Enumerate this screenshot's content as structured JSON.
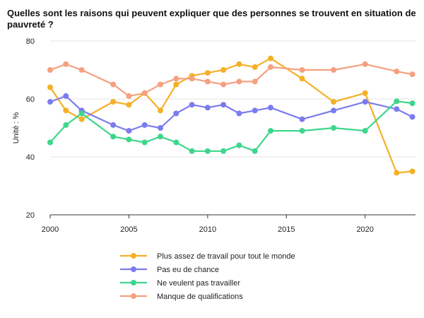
{
  "chart_data": {
    "type": "line",
    "title": "Quelles sont les raisons qui peuvent expliquer que des personnes se trouvent en situation de pauvreté ?",
    "xlabel": "",
    "ylabel": "Unité : %",
    "xlim": [
      2000,
      2023.2
    ],
    "ylim": [
      20,
      80
    ],
    "x_ticks": [
      2000,
      2005,
      2010,
      2015,
      2020
    ],
    "y_ticks": [
      20,
      40,
      60,
      80
    ],
    "grid": "horizontal",
    "legend_position": "bottom",
    "series": [
      {
        "name": "Plus assez de travail pour tout le monde",
        "color": "#F5B027",
        "points": [
          [
            2000,
            64
          ],
          [
            2001,
            56
          ],
          [
            2002,
            53
          ],
          [
            2004,
            59
          ],
          [
            2005,
            58
          ],
          [
            2006,
            62
          ],
          [
            2007,
            56
          ],
          [
            2008,
            65
          ],
          [
            2009,
            68
          ],
          [
            2010,
            69
          ],
          [
            2011,
            70
          ],
          [
            2012,
            72
          ],
          [
            2013,
            71
          ],
          [
            2014,
            74
          ],
          [
            2016,
            67
          ],
          [
            2018,
            59
          ],
          [
            2020,
            62
          ],
          [
            2022,
            34.5
          ],
          [
            2023,
            35
          ]
        ]
      },
      {
        "name": "Pas eu de chance",
        "color": "#7B7BEF",
        "points": [
          [
            2000,
            59
          ],
          [
            2001,
            61
          ],
          [
            2002,
            56
          ],
          [
            2004,
            51
          ],
          [
            2005,
            49
          ],
          [
            2006,
            51
          ],
          [
            2007,
            50
          ],
          [
            2008,
            55
          ],
          [
            2009,
            58
          ],
          [
            2010,
            57
          ],
          [
            2011,
            58
          ],
          [
            2012,
            55
          ],
          [
            2013,
            56
          ],
          [
            2014,
            57
          ],
          [
            2016,
            53
          ],
          [
            2018,
            56
          ],
          [
            2020,
            59
          ],
          [
            2022,
            56.5
          ],
          [
            2023,
            53.8
          ]
        ]
      },
      {
        "name": "Ne veulent pas travailler",
        "color": "#3DD68C",
        "points": [
          [
            2000,
            45
          ],
          [
            2001,
            51
          ],
          [
            2002,
            55
          ],
          [
            2004,
            47
          ],
          [
            2005,
            46
          ],
          [
            2006,
            45
          ],
          [
            2007,
            47
          ],
          [
            2008,
            45
          ],
          [
            2009,
            42
          ],
          [
            2010,
            42
          ],
          [
            2011,
            42
          ],
          [
            2012,
            44
          ],
          [
            2013,
            42
          ],
          [
            2014,
            49
          ],
          [
            2016,
            49
          ],
          [
            2018,
            50
          ],
          [
            2020,
            49
          ],
          [
            2022,
            59.2
          ],
          [
            2023,
            58.5
          ]
        ]
      },
      {
        "name": "Manque de qualifications",
        "color": "#F5A07F",
        "points": [
          [
            2000,
            70
          ],
          [
            2001,
            72
          ],
          [
            2002,
            70
          ],
          [
            2004,
            65
          ],
          [
            2005,
            61
          ],
          [
            2006,
            62
          ],
          [
            2007,
            65
          ],
          [
            2008,
            67
          ],
          [
            2009,
            67
          ],
          [
            2010,
            66
          ],
          [
            2011,
            65
          ],
          [
            2012,
            66
          ],
          [
            2013,
            66
          ],
          [
            2014,
            71
          ],
          [
            2016,
            70
          ],
          [
            2018,
            70
          ],
          [
            2020,
            72
          ],
          [
            2022,
            69.5
          ],
          [
            2023,
            68.5
          ]
        ]
      }
    ]
  }
}
